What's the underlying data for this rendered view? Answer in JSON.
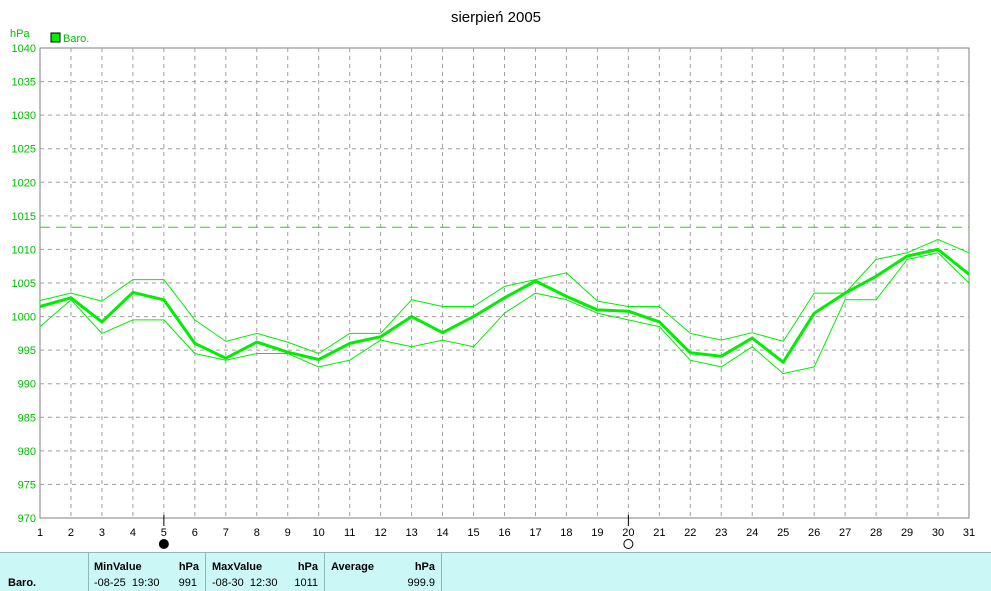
{
  "chart_data": {
    "type": "line",
    "title": "sierpień 2005",
    "ylabel": "hPa",
    "legend": "Baro.",
    "legend_placement": "top-left",
    "grid": true,
    "x": [
      1,
      2,
      3,
      4,
      5,
      6,
      7,
      8,
      9,
      10,
      11,
      12,
      13,
      14,
      15,
      16,
      17,
      18,
      19,
      20,
      21,
      22,
      23,
      24,
      25,
      26,
      27,
      28,
      29,
      30,
      31
    ],
    "xlim": [
      1,
      31
    ],
    "ylim": [
      970,
      1040
    ],
    "yticks": [
      970,
      975,
      980,
      985,
      990,
      995,
      1000,
      1005,
      1010,
      1015,
      1020,
      1025,
      1030,
      1035,
      1040
    ],
    "series": [
      {
        "role": "average",
        "values": [
          1001.5,
          1002.8,
          999.2,
          1003.6,
          1002.5,
          996.0,
          993.8,
          996.2,
          994.7,
          993.6,
          996.0,
          997.0,
          1000.0,
          997.6,
          1000.0,
          1002.8,
          1005.3,
          1003.0,
          1001.0,
          1000.8,
          999.2,
          994.6,
          994.1,
          996.8,
          993.2,
          1000.5,
          1003.5,
          1006.0,
          1009.0,
          1010.0,
          1006.3
        ]
      },
      {
        "role": "max",
        "values": [
          1002.4,
          1003.5,
          1002.3,
          1005.5,
          1005.5,
          999.5,
          996.3,
          997.5,
          996.2,
          994.5,
          997.5,
          997.5,
          1002.5,
          1001.5,
          1001.5,
          1004.5,
          1005.5,
          1006.5,
          1002.3,
          1001.5,
          1001.5,
          997.5,
          996.5,
          997.6,
          996.3,
          1003.5,
          1003.5,
          1008.5,
          1009.5,
          1011.5,
          1009.5
        ]
      },
      {
        "role": "min",
        "values": [
          998.5,
          1002.5,
          997.5,
          999.5,
          999.5,
          994.5,
          993.5,
          994.5,
          994.5,
          992.5,
          993.5,
          996.5,
          995.5,
          996.5,
          995.5,
          1000.5,
          1003.5,
          1002.5,
          1000.5,
          999.5,
          998.5,
          993.5,
          992.5,
          995.5,
          991.5,
          992.5,
          1002.5,
          1002.5,
          1008.5,
          1009.5,
          1005.0
        ]
      }
    ],
    "reference_line": 1013.3,
    "markers": [
      {
        "x": 5,
        "type": "filled-circle"
      },
      {
        "x": 20,
        "type": "open-circle"
      }
    ],
    "colors": {
      "line": "#00ee00",
      "grid": "#a0a0a0",
      "label": "#00bb00",
      "frame": "#808080"
    }
  },
  "stats": {
    "series_label": "Baro.",
    "min_header": "MinValue",
    "min_unit": "hPa",
    "min_time": "-08-25  19:30",
    "min_value": "991",
    "max_header": "MaxValue",
    "max_unit": "hPa",
    "max_time": "-08-30  12:30",
    "max_value": "1011",
    "avg_header": "Average",
    "avg_unit": "hPa",
    "avg_value": "999.9"
  }
}
